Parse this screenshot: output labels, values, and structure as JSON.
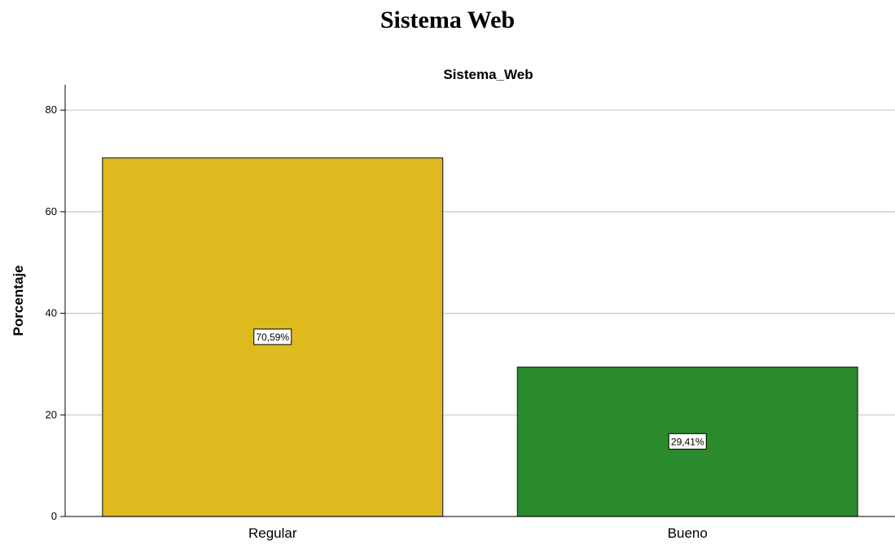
{
  "heading": "Sistema Web",
  "chart_data": {
    "type": "bar",
    "title": "Sistema_Web",
    "xlabel": "",
    "ylabel": "Porcentaje",
    "ylim": [
      0,
      85
    ],
    "yticks": [
      0,
      20,
      40,
      60,
      80
    ],
    "grid": true,
    "categories": [
      "Regular",
      "Bueno"
    ],
    "values": [
      70.59,
      29.41
    ],
    "data_labels": [
      "70,59%",
      "29,41%"
    ],
    "colors": [
      "#deba1e",
      "#2a8a2c"
    ]
  }
}
